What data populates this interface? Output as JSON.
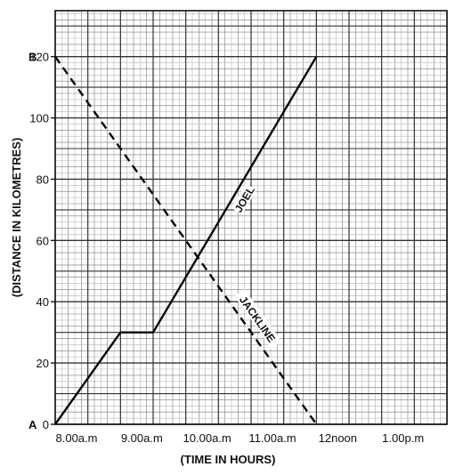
{
  "chart_data": {
    "type": "line",
    "xlabel": "(TIME IN HOURS)",
    "ylabel": "(DISTANCE IN KILOMETRES)",
    "x_tick_labels": [
      "8.00a.m",
      "9.00a.m",
      "10.00a.m",
      "11.00a.m",
      "12noon",
      "1.00p.m"
    ],
    "y_ticks": [
      0,
      20,
      40,
      60,
      80,
      100,
      120
    ],
    "xlim": [
      "8.00a.m",
      "1.00p.m"
    ],
    "ylim": [
      0,
      120
    ],
    "grid": true,
    "point_labels": {
      "origin": "A",
      "top": "B"
    },
    "series": [
      {
        "name": "JOEL",
        "style": "solid",
        "points": [
          {
            "x": "8.00a.m",
            "y": 0
          },
          {
            "x": "9.00a.m",
            "y": 30
          },
          {
            "x": "9.30a.m",
            "y": 30
          },
          {
            "x": "12noon",
            "y": 120
          }
        ]
      },
      {
        "name": "JACKLINE",
        "style": "dashed",
        "points": [
          {
            "x": "8.00a.m",
            "y": 120
          },
          {
            "x": "12noon",
            "y": 0
          }
        ]
      }
    ]
  }
}
